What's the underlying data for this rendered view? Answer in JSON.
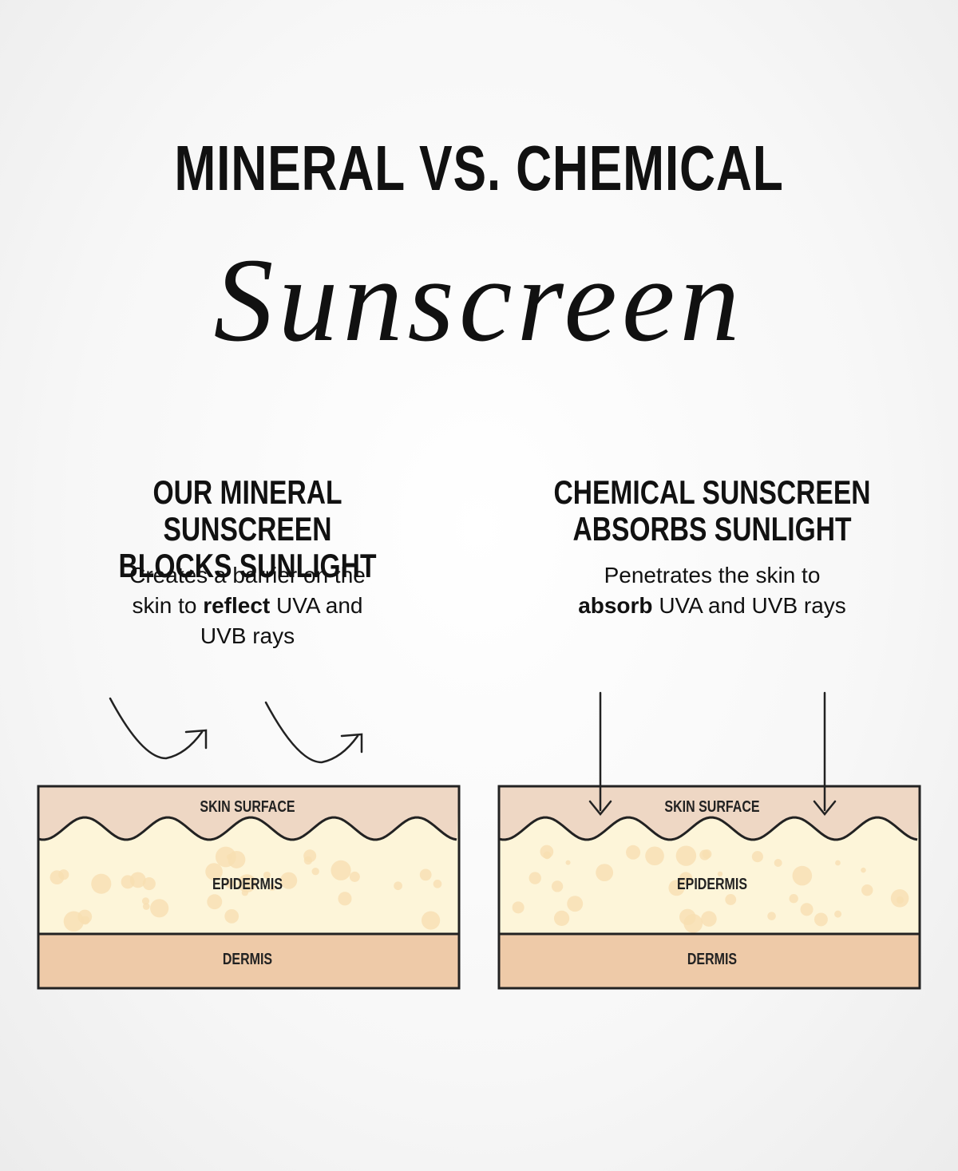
{
  "title": "MINERAL VS. CHEMICAL",
  "script_title": "Sunscreen",
  "panels": [
    {
      "heading": [
        "OUR MINERAL SUNSCREEN",
        "BLOCKS SUNLIGHT"
      ],
      "description": [
        {
          "text": "Creates a barrier on the skin to "
        },
        {
          "text": "reflect",
          "bold": true
        },
        {
          "text": " UVA and UVB rays"
        }
      ],
      "layers": [
        "SKIN SURFACE",
        "EPIDERMIS",
        "DERMIS"
      ]
    },
    {
      "heading": [
        "CHEMICAL SUNSCREEN",
        "ABSORBS SUNLIGHT"
      ],
      "description": [
        {
          "text": "Penetrates the skin to "
        },
        {
          "text": "absorb",
          "bold": true
        },
        {
          "text": " UVA and UVB rays"
        }
      ],
      "layers": [
        "SKIN SURFACE",
        "EPIDERMIS",
        "DERMIS"
      ]
    }
  ]
}
